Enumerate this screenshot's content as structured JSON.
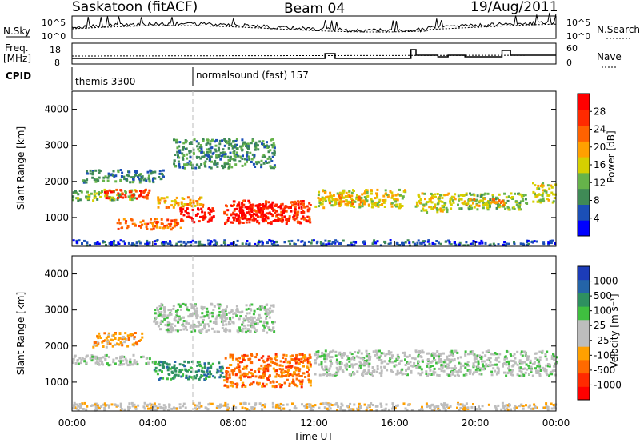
{
  "header": {
    "station": "Saskatoon (fitACF)",
    "beam": "Beam 04",
    "date": "19/Aug/2011"
  },
  "top_panels": {
    "nsky_label": "N.Sky",
    "nsky_ticks": [
      "10^5",
      "10^0"
    ],
    "nsearch_label": "N.Search",
    "nsearch_ticks": [
      "10^5",
      "10^0"
    ],
    "freq_label_1": "Freq.",
    "freq_label_2": "[MHz]",
    "freq_ticks": [
      "18",
      "8"
    ],
    "nave_label": "Nave",
    "nave_ticks": [
      "60",
      "0"
    ],
    "cpid_label": "CPID",
    "cpid_modes": [
      {
        "name": "themis 3300"
      },
      {
        "name": "normalsound (fast) 157"
      }
    ]
  },
  "colors": {
    "power_scale": [
      "#0000ff",
      "#1b4fb7",
      "#3f8a56",
      "#66b34a",
      "#d5d000",
      "#ffa000",
      "#ff6200",
      "#ff2a00",
      "#ff0000"
    ],
    "velocity_scale": [
      "#1c3cb8",
      "#2464a8",
      "#2e9060",
      "#3fbf3f",
      "#bdbdbd",
      "#bdbdbd",
      "#ffa000",
      "#ff6a00",
      "#ff2a00",
      "#ff0000"
    ],
    "ground_scatter": "#bdbdbd"
  },
  "chart_data": [
    {
      "type": "heatmap",
      "panel": "power",
      "ylabel": "Slant Range [km]",
      "yticks": [
        "4000",
        "3000",
        "2000",
        "1000"
      ],
      "ylim": [
        200,
        4500
      ],
      "xlim": [
        0,
        24
      ],
      "colorbar_label": "Power [dB]",
      "colorbar_ticks": [
        "28",
        "24",
        "20",
        "16",
        "12",
        "8",
        "4"
      ],
      "colorbar_range": [
        0,
        32
      ],
      "regions": [
        {
          "t0": 0.0,
          "t1": 3.2,
          "r0": 1500,
          "r1": 1800,
          "level": 3
        },
        {
          "t0": 1.4,
          "t1": 3.8,
          "r0": 1550,
          "r1": 1800,
          "level": 7
        },
        {
          "t0": 0.5,
          "t1": 4.5,
          "r0": 2000,
          "r1": 2350,
          "level": 2
        },
        {
          "t0": 4.2,
          "t1": 6.5,
          "r0": 1300,
          "r1": 1600,
          "level": 5
        },
        {
          "t0": 5.3,
          "t1": 7.0,
          "r0": 900,
          "r1": 1300,
          "level": 8
        },
        {
          "t0": 2.2,
          "t1": 5.5,
          "r0": 700,
          "r1": 1000,
          "level": 6
        },
        {
          "t0": 7.5,
          "t1": 11.8,
          "r0": 850,
          "r1": 1500,
          "level": 7
        },
        {
          "t0": 8.0,
          "t1": 10.5,
          "r0": 900,
          "r1": 1400,
          "level": 8
        },
        {
          "t0": 12.0,
          "t1": 16.5,
          "r0": 1300,
          "r1": 1800,
          "level": 4
        },
        {
          "t0": 12.7,
          "t1": 14.5,
          "r0": 1400,
          "r1": 1650,
          "level": 5
        },
        {
          "t0": 17.0,
          "t1": 19.0,
          "r0": 1150,
          "r1": 1700,
          "level": 4
        },
        {
          "t0": 19.0,
          "t1": 22.5,
          "r0": 1250,
          "r1": 1700,
          "level": 3
        },
        {
          "t0": 19.3,
          "t1": 21.5,
          "r0": 1350,
          "r1": 1550,
          "level": 5
        },
        {
          "t0": 22.8,
          "t1": 24.0,
          "r0": 1450,
          "r1": 2000,
          "level": 4
        },
        {
          "t0": 5.0,
          "t1": 10.0,
          "r0": 2400,
          "r1": 3200,
          "level": 2
        },
        {
          "t0": 0.0,
          "t1": 24.0,
          "r0": 250,
          "r1": 400,
          "level": 1
        }
      ]
    },
    {
      "type": "heatmap",
      "panel": "velocity",
      "xlabel": "Time UT",
      "ylabel": "Slant Range [km]",
      "yticks": [
        "4000",
        "3000",
        "2000",
        "1000"
      ],
      "xticks": [
        "00:00",
        "04:00",
        "08:00",
        "12:00",
        "16:00",
        "20:00",
        "00:00"
      ],
      "ylim": [
        200,
        4500
      ],
      "xlim": [
        0,
        24
      ],
      "colorbar_label": "Velocity [m s⁻¹]",
      "colorbar_ticks": [
        "1000",
        "500",
        "100",
        "25",
        "-25",
        "-100",
        "-500",
        "-1000"
      ],
      "regions": [
        {
          "t0": 0.0,
          "t1": 4.0,
          "r0": 1500,
          "r1": 1800,
          "level": 4
        },
        {
          "t0": 1.0,
          "t1": 3.5,
          "r0": 2000,
          "r1": 2400,
          "level": 6
        },
        {
          "t0": 4.0,
          "t1": 7.5,
          "r0": 1100,
          "r1": 1600,
          "level": 2
        },
        {
          "t0": 7.5,
          "t1": 11.8,
          "r0": 900,
          "r1": 1800,
          "level": 7
        },
        {
          "t0": 12.0,
          "t1": 24.0,
          "r0": 1200,
          "r1": 1900,
          "level": 4
        },
        {
          "t0": 4.0,
          "t1": 10.0,
          "r0": 2400,
          "r1": 3200,
          "level": 4
        },
        {
          "t0": 0.0,
          "t1": 24.0,
          "r0": 250,
          "r1": 450,
          "level": 5
        }
      ]
    }
  ]
}
